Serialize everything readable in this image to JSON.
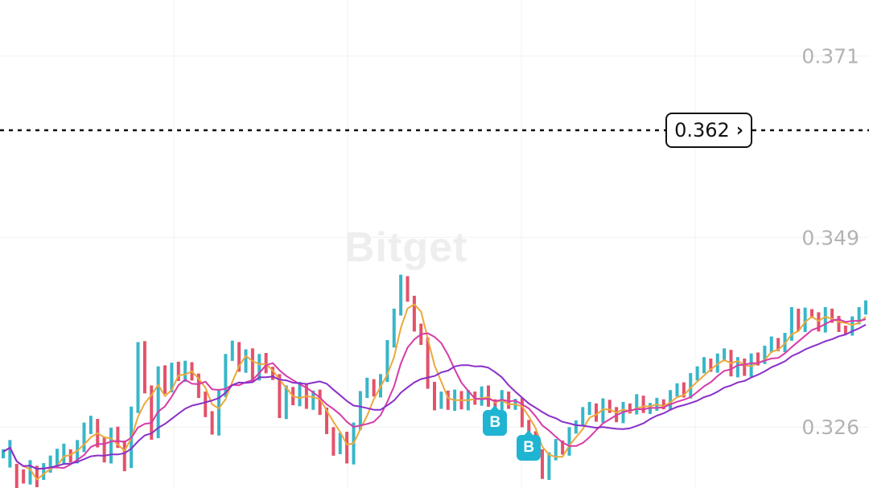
{
  "chart_data": {
    "type": "line",
    "price_labels": [
      "0.371",
      "0.349",
      "0.326"
    ],
    "price_label_values": [
      0.371,
      0.349,
      0.326
    ],
    "current_price": "0.362",
    "current_price_value": 0.362,
    "ylim": [
      0.3186,
      0.3778
    ],
    "grid": true,
    "watermark": "Bitget",
    "colors": {
      "up": "#38b6c9",
      "down": "#e3526a",
      "ma_fast": "#eba93b",
      "ma_mid": "#d63ba9",
      "ma_slow": "#8a2fc9",
      "badge": "#1fb4d2"
    },
    "markers": [
      {
        "label": "B",
        "index": 73,
        "price": 0.3265
      },
      {
        "label": "B",
        "index": 78,
        "price": 0.3235
      }
    ],
    "bars": [
      [
        0.3225,
        0.323
      ],
      [
        0.3215,
        0.324
      ],
      [
        0.321,
        0.3185
      ],
      [
        0.3205,
        0.3195
      ],
      [
        0.3195,
        0.3215
      ],
      [
        0.321,
        0.319
      ],
      [
        0.32,
        0.3212
      ],
      [
        0.321,
        0.322
      ],
      [
        0.3215,
        0.323
      ],
      [
        0.322,
        0.3235
      ],
      [
        0.323,
        0.322
      ],
      [
        0.322,
        0.324
      ],
      [
        0.3235,
        0.326
      ],
      [
        0.3255,
        0.327
      ],
      [
        0.3265,
        0.324
      ],
      [
        0.3245,
        0.322
      ],
      [
        0.322,
        0.3255
      ],
      [
        0.3255,
        0.324
      ],
      [
        0.324,
        0.321
      ],
      [
        0.3215,
        0.328
      ],
      [
        0.328,
        0.336
      ],
      [
        0.336,
        0.3305
      ],
      [
        0.3305,
        0.325
      ],
      [
        0.325,
        0.333
      ],
      [
        0.333,
        0.3305
      ],
      [
        0.3305,
        0.3335
      ],
      [
        0.3335,
        0.332
      ],
      [
        0.332,
        0.3335
      ],
      [
        0.3335,
        0.332
      ],
      [
        0.332,
        0.33
      ],
      [
        0.33,
        0.3275
      ],
      [
        0.3275,
        0.3255
      ],
      [
        0.3255,
        0.33
      ],
      [
        0.33,
        0.3345
      ],
      [
        0.3345,
        0.336
      ],
      [
        0.336,
        0.333
      ],
      [
        0.333,
        0.335
      ],
      [
        0.335,
        0.332
      ],
      [
        0.332,
        0.3345
      ],
      [
        0.3345,
        0.333
      ],
      [
        0.333,
        0.332
      ],
      [
        0.332,
        0.3275
      ],
      [
        0.3275,
        0.3305
      ],
      [
        0.3305,
        0.329
      ],
      [
        0.329,
        0.331
      ],
      [
        0.331,
        0.3285
      ],
      [
        0.3285,
        0.33
      ],
      [
        0.33,
        0.328
      ],
      [
        0.328,
        0.3255
      ],
      [
        0.3255,
        0.323
      ],
      [
        0.323,
        0.325
      ],
      [
        0.325,
        0.322
      ],
      [
        0.322,
        0.326
      ],
      [
        0.326,
        0.33
      ],
      [
        0.33,
        0.3315
      ],
      [
        0.3315,
        0.33
      ],
      [
        0.33,
        0.332
      ],
      [
        0.332,
        0.336
      ],
      [
        0.336,
        0.34
      ],
      [
        0.34,
        0.344
      ],
      [
        0.344,
        0.3415
      ],
      [
        0.3415,
        0.338
      ],
      [
        0.338,
        0.3365
      ],
      [
        0.3365,
        0.331
      ],
      [
        0.331,
        0.3285
      ],
      [
        0.3285,
        0.33
      ],
      [
        0.33,
        0.3285
      ],
      [
        0.3285,
        0.33
      ],
      [
        0.33,
        0.3285
      ],
      [
        0.3285,
        0.33
      ],
      [
        0.33,
        0.329
      ],
      [
        0.329,
        0.3305
      ],
      [
        0.3305,
        0.329
      ],
      [
        0.329,
        0.3275
      ],
      [
        0.3275,
        0.33
      ],
      [
        0.33,
        0.3285
      ],
      [
        0.3285,
        0.329
      ],
      [
        0.329,
        0.3265
      ],
      [
        0.3265,
        0.325
      ],
      [
        0.325,
        0.323
      ],
      [
        0.323,
        0.32
      ],
      [
        0.32,
        0.3225
      ],
      [
        0.3225,
        0.324
      ],
      [
        0.324,
        0.323
      ],
      [
        0.323,
        0.3255
      ],
      [
        0.3255,
        0.3265
      ],
      [
        0.3265,
        0.328
      ],
      [
        0.328,
        0.3285
      ],
      [
        0.3285,
        0.327
      ],
      [
        0.327,
        0.329
      ],
      [
        0.329,
        0.328
      ],
      [
        0.328,
        0.327
      ],
      [
        0.327,
        0.3285
      ],
      [
        0.3285,
        0.328
      ],
      [
        0.328,
        0.3295
      ],
      [
        0.3295,
        0.328
      ],
      [
        0.328,
        0.3285
      ],
      [
        0.3285,
        0.329
      ],
      [
        0.329,
        0.3285
      ],
      [
        0.3285,
        0.33
      ],
      [
        0.33,
        0.331
      ],
      [
        0.331,
        0.33
      ],
      [
        0.33,
        0.332
      ],
      [
        0.332,
        0.333
      ],
      [
        0.333,
        0.334
      ],
      [
        0.334,
        0.333
      ],
      [
        0.333,
        0.3345
      ],
      [
        0.3345,
        0.335
      ],
      [
        0.335,
        0.3325
      ],
      [
        0.3325,
        0.334
      ],
      [
        0.334,
        0.3325
      ],
      [
        0.3325,
        0.3345
      ],
      [
        0.3345,
        0.334
      ],
      [
        0.334,
        0.3355
      ],
      [
        0.3355,
        0.3365
      ],
      [
        0.3365,
        0.3355
      ],
      [
        0.3355,
        0.337
      ],
      [
        0.337,
        0.34
      ],
      [
        0.34,
        0.338
      ],
      [
        0.338,
        0.34
      ],
      [
        0.34,
        0.3395
      ],
      [
        0.3395,
        0.338
      ],
      [
        0.338,
        0.34
      ],
      [
        0.34,
        0.339
      ],
      [
        0.339,
        0.338
      ],
      [
        0.338,
        0.3375
      ],
      [
        0.3375,
        0.339
      ],
      [
        0.339,
        0.34
      ],
      [
        0.34,
        0.341
      ]
    ]
  }
}
